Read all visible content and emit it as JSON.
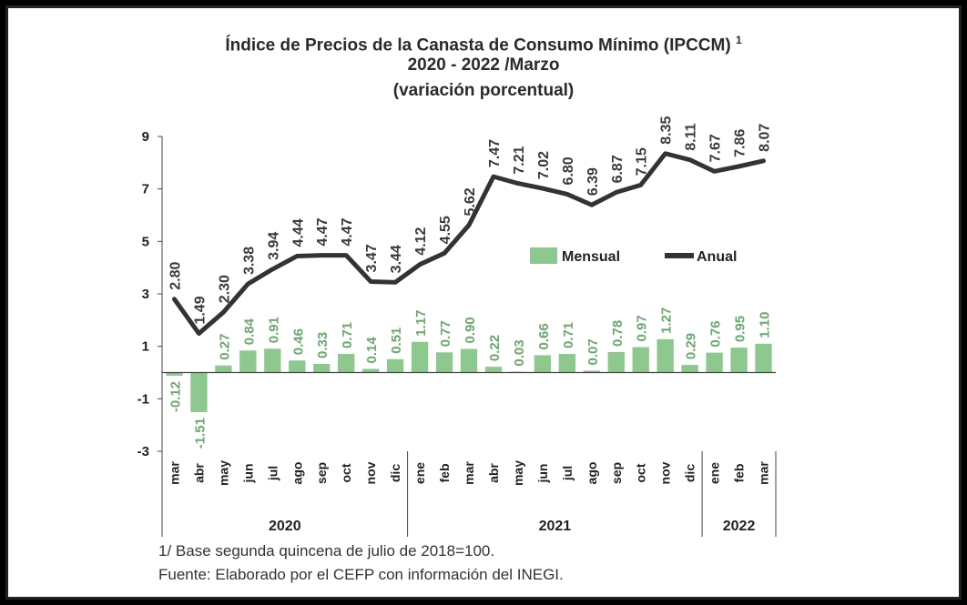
{
  "chart_data": {
    "type": "bar+line",
    "title_line1": "Índice de Precios de la Canasta de Consumo Mínimo (IPCCM)",
    "title_sup": "1",
    "title_line2": "2020 - 2022 /Marzo",
    "title_line3": "(variación porcentual)",
    "categories": [
      "mar",
      "abr",
      "may",
      "jun",
      "jul",
      "ago",
      "sep",
      "oct",
      "nov",
      "dic",
      "ene",
      "feb",
      "mar",
      "abr",
      "may",
      "jun",
      "jul",
      "ago",
      "sep",
      "oct",
      "nov",
      "dic",
      "ene",
      "feb",
      "mar"
    ],
    "years": [
      {
        "label": "2020",
        "count": 10
      },
      {
        "label": "2021",
        "count": 12
      },
      {
        "label": "2022",
        "count": 3
      }
    ],
    "ylim": [
      -3,
      9
    ],
    "yticks": [
      "-3",
      "-1",
      "1",
      "3",
      "5",
      "7",
      "9"
    ],
    "series": [
      {
        "name": "Mensual",
        "kind": "bar",
        "color": "#8dc88e",
        "label_color": "#69a96b",
        "values": [
          -0.12,
          -1.51,
          0.27,
          0.84,
          0.91,
          0.46,
          0.33,
          0.71,
          0.14,
          0.51,
          1.17,
          0.77,
          0.9,
          0.22,
          0.03,
          0.66,
          0.71,
          0.07,
          0.78,
          0.97,
          1.27,
          0.29,
          0.76,
          0.95,
          1.1
        ],
        "labels": [
          "-0.12",
          "-1.51",
          "0.27",
          "0.84",
          "0.91",
          "0.46",
          "0.33",
          "0.71",
          "0.14",
          "0.51",
          "1.17",
          "0.77",
          "0.90",
          "0.22",
          "0.03",
          "0.66",
          "0.71",
          "0.07",
          "0.78",
          "0.97",
          "1.27",
          "0.29",
          "0.76",
          "0.95",
          "1.10"
        ]
      },
      {
        "name": "Anual",
        "kind": "line",
        "color": "#333333",
        "label_color": "#3a3a3a",
        "values": [
          2.8,
          1.49,
          2.3,
          3.38,
          3.94,
          4.44,
          4.47,
          4.47,
          3.47,
          3.44,
          4.12,
          4.55,
          5.62,
          7.47,
          7.21,
          7.02,
          6.8,
          6.39,
          6.87,
          7.15,
          8.35,
          8.11,
          7.67,
          7.86,
          8.07
        ],
        "labels": [
          "2.80",
          "1.49",
          "2.30",
          "3.38",
          "3.94",
          "4.44",
          "4.47",
          "4.47",
          "3.47",
          "3.44",
          "4.12",
          "4.55",
          "5.62",
          "7.47",
          "7.21",
          "7.02",
          "6.80",
          "6.39",
          "6.87",
          "7.15",
          "8.35",
          "8.11",
          "7.67",
          "7.86",
          "8.07"
        ]
      }
    ],
    "legend_position": "center-right",
    "grid": false,
    "footnote": "1/ Base segunda quincena de julio de 2018=100.",
    "source": "Fuente: Elaborado por el CEFP con información del INEGI."
  }
}
